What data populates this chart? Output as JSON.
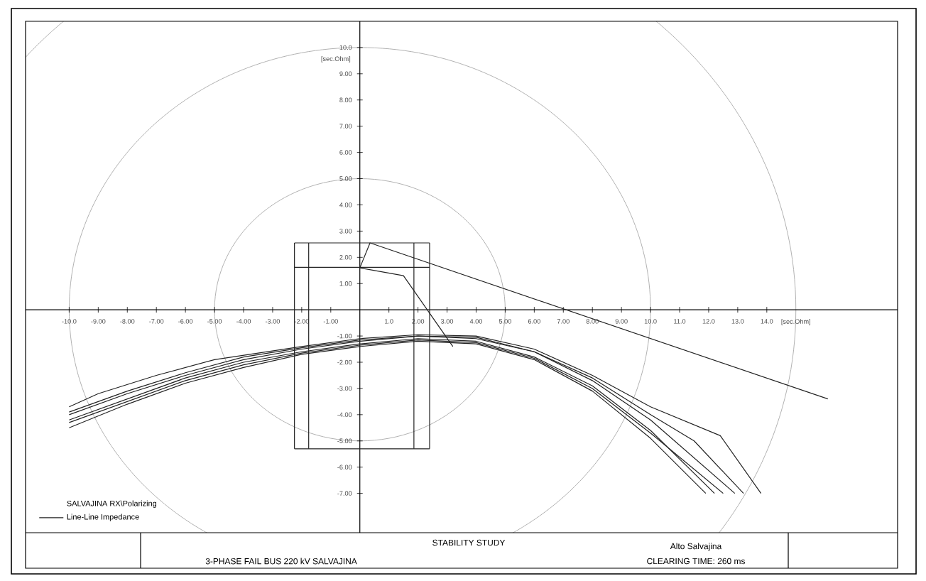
{
  "chart_data": {
    "type": "line",
    "title": "STABILITY STUDY",
    "subtitle": "3-PHASE FAIL BUS 220 kV SALVAJINA",
    "annotations": [
      "Alto Salvajina",
      "CLEARING TIME: 260 ms"
    ],
    "xlabel": "[sec.Ohm]",
    "ylabel": "[sec.Ohm]",
    "legend_title": "SALVAJINA RX\\Polarizing",
    "legend": "bottom left",
    "line_style": "solid",
    "xlim": [
      -11.5,
      18.5
    ],
    "ylim": [
      -8.5,
      11
    ],
    "xticks": [
      {
        "value": -10,
        "label": "-10.0"
      },
      {
        "value": -9,
        "label": "-9.00"
      },
      {
        "value": -8,
        "label": "-8.00"
      },
      {
        "value": -7,
        "label": "-7.00"
      },
      {
        "value": -6,
        "label": "-6.00"
      },
      {
        "value": -5,
        "label": "-5.00"
      },
      {
        "value": -4,
        "label": "-4.00"
      },
      {
        "value": -3,
        "label": "-3.00"
      },
      {
        "value": -2,
        "label": "-2.00"
      },
      {
        "value": -1,
        "label": "-1.00"
      },
      {
        "value": 1,
        "label": "1.0"
      },
      {
        "value": 2,
        "label": "2.00"
      },
      {
        "value": 3,
        "label": "3.00"
      },
      {
        "value": 4,
        "label": "4.00"
      },
      {
        "value": 5,
        "label": "5.00"
      },
      {
        "value": 6,
        "label": "6.00"
      },
      {
        "value": 7,
        "label": "7.00"
      },
      {
        "value": 8,
        "label": "8.00"
      },
      {
        "value": 9,
        "label": "9.00"
      },
      {
        "value": 10,
        "label": "10.0"
      },
      {
        "value": 11,
        "label": "11.0"
      },
      {
        "value": 12,
        "label": "12.0"
      },
      {
        "value": 13,
        "label": "13.0"
      },
      {
        "value": 14,
        "label": "14.0"
      }
    ],
    "yticks": [
      {
        "value": -7,
        "label": "-7.00"
      },
      {
        "value": -6,
        "label": "-6.00"
      },
      {
        "value": -5,
        "label": "-5.00"
      },
      {
        "value": -4,
        "label": "-4.00"
      },
      {
        "value": -3,
        "label": "-3.00"
      },
      {
        "value": -2,
        "label": "-2.00"
      },
      {
        "value": -1,
        "label": "-1.00"
      },
      {
        "value": 1,
        "label": "1.00"
      },
      {
        "value": 2,
        "label": "2.00"
      },
      {
        "value": 3,
        "label": "3.00"
      },
      {
        "value": 4,
        "label": "4.00"
      },
      {
        "value": 5,
        "label": "5.00"
      },
      {
        "value": 6,
        "label": "6.00"
      },
      {
        "value": 7,
        "label": "7.00"
      },
      {
        "value": 8,
        "label": "8.00"
      },
      {
        "value": 9,
        "label": "9.00"
      },
      {
        "value": 10,
        "label": "10.0"
      }
    ],
    "series": [
      {
        "name": "Line-Line Impedance",
        "color": "#222222",
        "x": [
          -10,
          -9,
          -7,
          -5,
          -2,
          0,
          2,
          4,
          6,
          8,
          10,
          12.4,
          13.8
        ],
        "values": [
          -3.7,
          -3.2,
          -2.5,
          -1.9,
          -1.4,
          -1.1,
          -0.95,
          -1.0,
          -1.5,
          -2.5,
          -3.7,
          -4.8,
          -7.0
        ]
      },
      {
        "color": "#222222",
        "x": [
          -10,
          -8,
          -6,
          -4,
          -2,
          0,
          2,
          4,
          6,
          8,
          10,
          12.9
        ],
        "values": [
          -4.0,
          -3.2,
          -2.5,
          -1.9,
          -1.5,
          -1.2,
          -1.0,
          -1.1,
          -1.6,
          -2.7,
          -4.2,
          -7.0
        ]
      },
      {
        "color": "#222222",
        "x": [
          -10,
          -8,
          -6,
          -4,
          -2,
          0,
          2,
          4,
          6,
          8,
          10,
          12.2
        ],
        "values": [
          -4.2,
          -3.4,
          -2.6,
          -2.0,
          -1.6,
          -1.3,
          -1.1,
          -1.2,
          -1.8,
          -2.9,
          -4.6,
          -7.0
        ]
      },
      {
        "color": "#222222",
        "x": [
          -10,
          -8,
          -6,
          -4,
          -2,
          0,
          2,
          4,
          6,
          8,
          10,
          11.9
        ],
        "values": [
          -4.5,
          -3.6,
          -2.8,
          -2.2,
          -1.7,
          -1.4,
          -1.2,
          -1.3,
          -1.9,
          -3.1,
          -4.9,
          -7.0
        ]
      },
      {
        "color": "#222222",
        "x": [
          -10,
          -8,
          -6,
          -4,
          -2,
          0,
          2,
          4,
          6,
          8,
          10,
          11.5,
          13.2
        ],
        "values": [
          -3.9,
          -3.1,
          -2.4,
          -1.8,
          -1.45,
          -1.15,
          -1.0,
          -1.05,
          -1.6,
          -2.6,
          -4.0,
          -5.0,
          -7.0
        ]
      },
      {
        "color": "#222222",
        "x": [
          -10,
          -8,
          -6,
          -4,
          -2,
          0,
          2,
          4,
          6,
          8,
          10,
          12.5
        ],
        "values": [
          -4.3,
          -3.5,
          -2.7,
          -2.1,
          -1.65,
          -1.35,
          -1.15,
          -1.25,
          -1.85,
          -3.0,
          -4.7,
          -7.0
        ]
      },
      {
        "color": "#222222",
        "x": [
          -2.25,
          2.4
        ],
        "values": [
          2.55,
          2.55
        ]
      },
      {
        "color": "#222222",
        "x": [
          -2.25,
          2.4
        ],
        "values": [
          -5.3,
          -5.3
        ]
      },
      {
        "color": "#222222",
        "x": [
          -2.25,
          2.4
        ],
        "values": [
          1.62,
          1.62
        ]
      },
      {
        "color": "#222222",
        "x": [
          -2.25,
          -2.25
        ],
        "values": [
          -5.3,
          2.55
        ]
      },
      {
        "color": "#222222",
        "x": [
          -1.76,
          -1.76
        ],
        "values": [
          -5.3,
          2.55
        ]
      },
      {
        "color": "#222222",
        "x": [
          1.86,
          1.86
        ],
        "values": [
          -5.3,
          2.55
        ]
      },
      {
        "color": "#222222",
        "x": [
          2.4,
          2.4
        ],
        "values": [
          -5.3,
          2.55
        ]
      },
      {
        "color": "#222222",
        "x": [
          0,
          1.5,
          3.2
        ],
        "values": [
          1.6,
          1.3,
          -1.4
        ]
      },
      {
        "color": "#222222",
        "x": [
          0,
          0.35,
          16.1
        ],
        "values": [
          1.6,
          2.55,
          -3.4
        ]
      }
    ]
  }
}
